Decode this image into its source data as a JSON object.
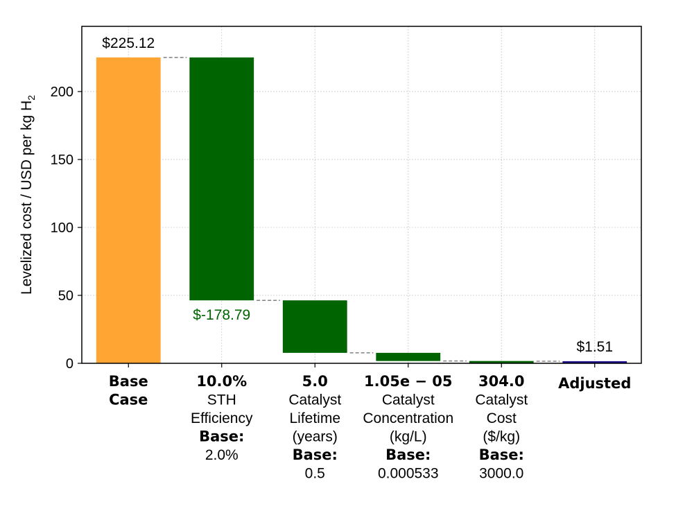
{
  "chart_data": {
    "type": "bar",
    "subtype": "waterfall",
    "ylabel": "Levelized cost / USD per kg H",
    "ylabel_subscript": "2",
    "ylim": [
      0,
      248
    ],
    "yticks": [
      0,
      50,
      100,
      150,
      200
    ],
    "grid": true,
    "categories": [
      {
        "value_label": "",
        "lines": [
          {
            "text": "Base",
            "bold": true
          },
          {
            "text": "Case",
            "bold": true
          }
        ]
      },
      {
        "value_label": "10.0%",
        "lines": [
          {
            "text": "STH",
            "bold": false
          },
          {
            "text": "Efficiency",
            "bold": false
          },
          {
            "text": "Base:",
            "bold": true
          },
          {
            "text": "2.0%",
            "bold": false
          }
        ]
      },
      {
        "value_label": "5.0",
        "lines": [
          {
            "text": "Catalyst",
            "bold": false
          },
          {
            "text": "Lifetime",
            "bold": false
          },
          {
            "text": "(years)",
            "bold": false
          },
          {
            "text": "Base:",
            "bold": true
          },
          {
            "text": "0.5",
            "bold": false
          }
        ]
      },
      {
        "value_label": "1.05e − 05",
        "lines": [
          {
            "text": "Catalyst",
            "bold": false
          },
          {
            "text": "Concentration",
            "bold": false
          },
          {
            "text": "(kg/L)",
            "bold": false
          },
          {
            "text": "Base:",
            "bold": true
          },
          {
            "text": "0.000533",
            "bold": false
          }
        ]
      },
      {
        "value_label": "304.0",
        "lines": [
          {
            "text": "Catalyst",
            "bold": false
          },
          {
            "text": "Cost",
            "bold": false
          },
          {
            "text": "($/kg)",
            "bold": false
          },
          {
            "text": "Base:",
            "bold": true
          },
          {
            "text": "3000.0",
            "bold": false
          }
        ]
      },
      {
        "value_label": "",
        "lines": [
          {
            "text": "Adjusted",
            "bold": true
          }
        ]
      }
    ],
    "bars": [
      {
        "kind": "base",
        "start": 0,
        "end": 225.12,
        "color": "#FFA533",
        "label": "$225.12",
        "label_color": "#000000",
        "label_pos": "above"
      },
      {
        "kind": "delta",
        "start": 225.12,
        "end": 46.33,
        "color": "#006400",
        "label": "$-178.79",
        "label_color": "#006400",
        "label_pos": "below"
      },
      {
        "kind": "delta",
        "start": 46.33,
        "end": 7.7,
        "color": "#006400",
        "label": "",
        "label_color": "#006400",
        "label_pos": "below"
      },
      {
        "kind": "delta",
        "start": 7.7,
        "end": 1.7,
        "color": "#006400",
        "label": "",
        "label_color": "#006400",
        "label_pos": "below"
      },
      {
        "kind": "delta",
        "start": 1.7,
        "end": 1.51,
        "color": "#006400",
        "label": "",
        "label_color": "#006400",
        "label_pos": "below"
      },
      {
        "kind": "total",
        "start": 0,
        "end": 1.51,
        "color": "#1A0A8C",
        "label": "$1.51",
        "label_color": "#000000",
        "label_pos": "above"
      }
    ],
    "connector_color": "#808080"
  }
}
